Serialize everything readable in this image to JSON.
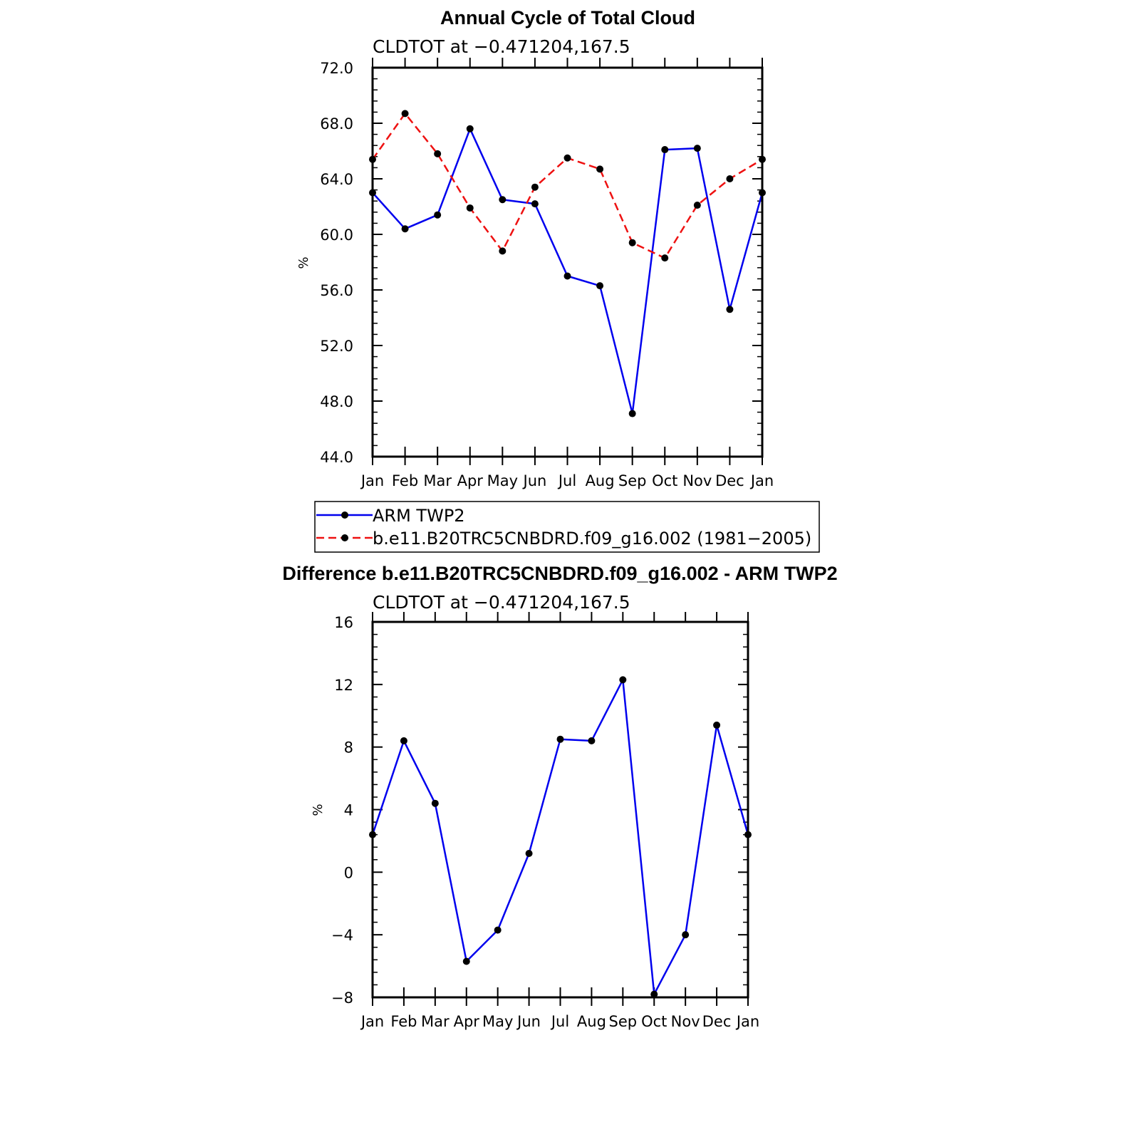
{
  "chart_data": [
    {
      "type": "line",
      "title": "Annual Cycle of Total Cloud",
      "subtitle": "CLDTOT at −0.471204,167.5",
      "ylabel": "%",
      "ylim": [
        44.0,
        72.0
      ],
      "yticks": [
        44,
        48,
        52,
        56,
        60,
        64,
        68,
        72
      ],
      "ytick_labels": [
        "44.0",
        "48.0",
        "52.0",
        "56.0",
        "60.0",
        "64.0",
        "68.0",
        "72.0"
      ],
      "categories": [
        "Jan",
        "Feb",
        "Mar",
        "Apr",
        "May",
        "Jun",
        "Jul",
        "Aug",
        "Sep",
        "Oct",
        "Nov",
        "Dec",
        "Jan"
      ],
      "series": [
        {
          "name": "ARM TWP2",
          "color": "#0000ee",
          "dash": "solid",
          "values": [
            63.0,
            60.4,
            61.4,
            67.6,
            62.5,
            62.2,
            57.0,
            56.3,
            47.1,
            66.1,
            66.2,
            54.6,
            63.0
          ]
        },
        {
          "name": "b.e11.B20TRC5CNBDRD.f09_g16.002 (1981−2005)",
          "color": "#ee1111",
          "dash": "dashed",
          "values": [
            65.4,
            68.7,
            65.8,
            61.9,
            58.8,
            63.4,
            65.5,
            64.7,
            59.4,
            58.3,
            62.1,
            64.0,
            65.4
          ]
        }
      ]
    },
    {
      "type": "line",
      "title": "Difference b.e11.B20TRC5CNBDRD.f09_g16.002 - ARM TWP2",
      "subtitle": "CLDTOT at −0.471204,167.5",
      "ylabel": "%",
      "ylim": [
        -8,
        16
      ],
      "yticks": [
        -8,
        -4,
        0,
        4,
        8,
        12,
        16
      ],
      "ytick_labels": [
        "−8",
        "−4",
        "0",
        "4",
        "8",
        "12",
        "16"
      ],
      "categories": [
        "Jan",
        "Feb",
        "Mar",
        "Apr",
        "May",
        "Jun",
        "Jul",
        "Aug",
        "Sep",
        "Oct",
        "Nov",
        "Dec",
        "Jan"
      ],
      "series": [
        {
          "name": "Difference",
          "color": "#0000ee",
          "dash": "solid",
          "values": [
            2.4,
            8.4,
            4.4,
            -5.7,
            -3.7,
            1.2,
            8.5,
            8.4,
            12.3,
            -7.8,
            -4.0,
            9.4,
            2.4
          ]
        }
      ]
    }
  ]
}
